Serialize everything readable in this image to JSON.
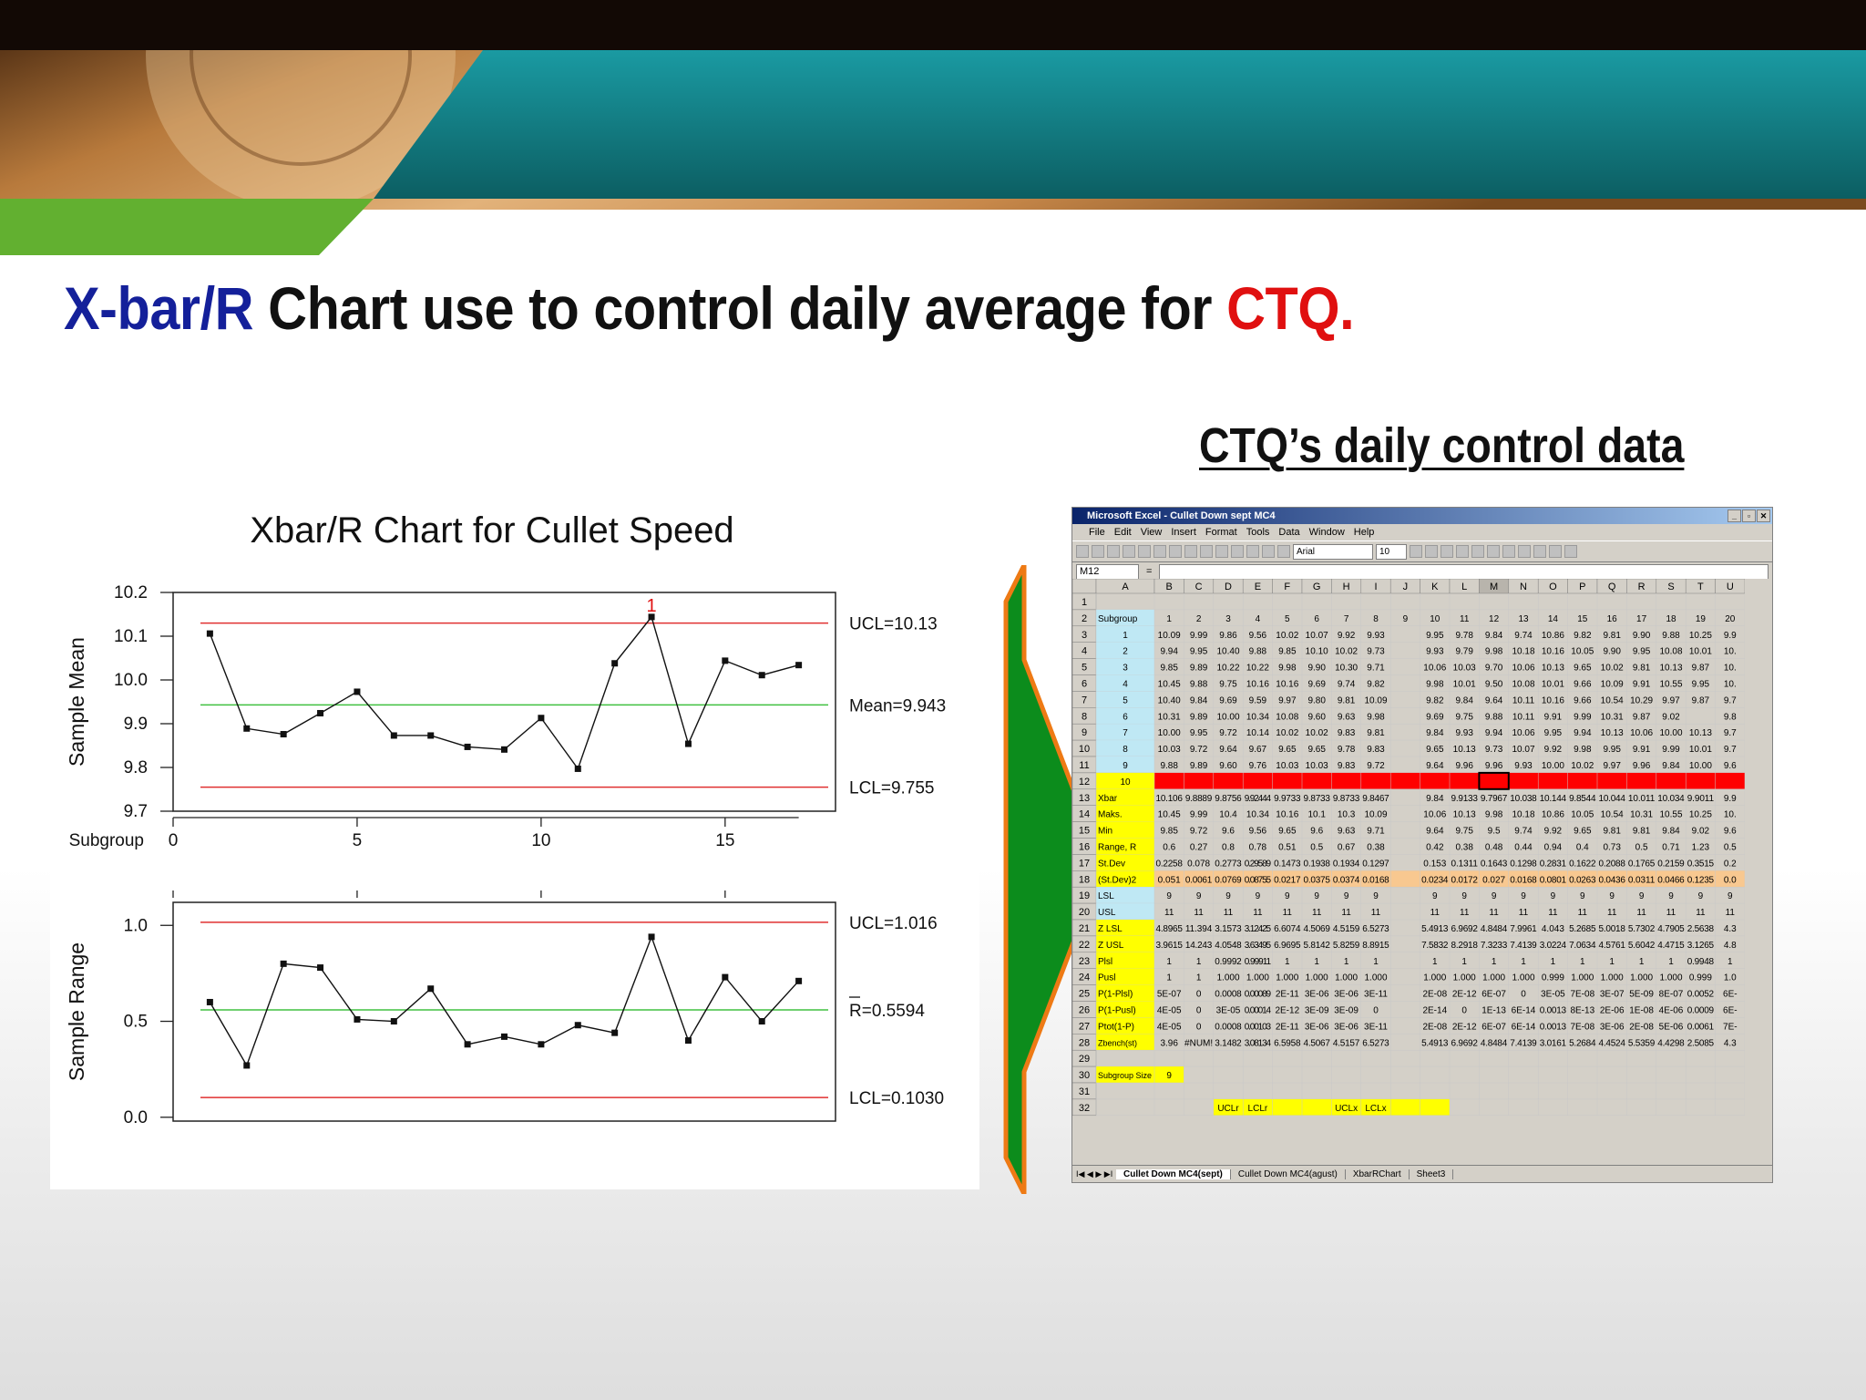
{
  "title": {
    "part1": "X-bar/R",
    "part2": " Chart use to control daily average for ",
    "part3": "CTQ."
  },
  "ctq_heading": "CTQ’s daily control data",
  "chart_data": [
    {
      "type": "line",
      "title": "Xbar/R Chart for Cullet Speed",
      "xlabel": "Subgroup",
      "ylabel": "Sample Mean",
      "x": [
        1,
        2,
        3,
        4,
        5,
        6,
        7,
        8,
        9,
        10,
        11,
        12,
        13,
        14,
        15,
        16,
        17
      ],
      "y": [
        10.106,
        9.889,
        9.876,
        9.924,
        9.973,
        9.873,
        9.873,
        9.847,
        9.841,
        9.913,
        9.797,
        10.038,
        10.144,
        9.854,
        10.044,
        10.011,
        10.034
      ],
      "xticks": [
        0,
        5,
        10,
        15
      ],
      "xlim": [
        0,
        18
      ],
      "yticks": [
        9.7,
        9.8,
        9.9,
        10.0,
        10.1,
        10.2
      ],
      "ytick_labels": [
        "9.7",
        "9.8",
        "9.9",
        "10.0",
        "10.1",
        "10.2"
      ],
      "ylim": [
        9.7,
        10.2
      ],
      "limits": [
        {
          "label": "UCL=10.13",
          "value": 10.13,
          "color": "#e03030"
        },
        {
          "label": "Mean=9.943",
          "value": 9.943,
          "color": "#40c040"
        },
        {
          "label": "LCL=9.755",
          "value": 9.755,
          "color": "#e03030"
        }
      ],
      "out_of_control": {
        "index": 12,
        "label": "1"
      }
    },
    {
      "type": "line",
      "ylabel": "Sample Range",
      "x": [
        1,
        2,
        3,
        4,
        5,
        6,
        7,
        8,
        9,
        10,
        11,
        12,
        13,
        14,
        15,
        16,
        17
      ],
      "y": [
        0.6,
        0.27,
        0.8,
        0.78,
        0.51,
        0.5,
        0.67,
        0.38,
        0.42,
        0.38,
        0.48,
        0.44,
        0.94,
        0.4,
        0.73,
        0.5,
        0.71
      ],
      "xlim": [
        0,
        18
      ],
      "yticks": [
        0.0,
        0.5,
        1.0
      ],
      "ytick_labels": [
        "0.0",
        "0.5",
        "1.0"
      ],
      "ylim": [
        -0.02,
        1.12
      ],
      "limits": [
        {
          "label": "UCL=1.016",
          "value": 1.016,
          "color": "#e03030"
        },
        {
          "label": "R=0.5594",
          "value": 0.5594,
          "color": "#40c040"
        },
        {
          "label": "LCL=0.1030",
          "value": 0.103,
          "color": "#e03030"
        }
      ]
    }
  ],
  "excel": {
    "title": "Microsoft Excel - Cullet Down sept MC4",
    "menu": [
      "File",
      "Edit",
      "View",
      "Insert",
      "Format",
      "Tools",
      "Data",
      "Window",
      "Help"
    ],
    "name_box": "M12",
    "formula_eq": "=",
    "font_name": "Arial",
    "font_size": "10",
    "columns": [
      "A",
      "B",
      "C",
      "D",
      "E",
      "F",
      "G",
      "H",
      "I",
      "J",
      "K",
      "L",
      "M",
      "N",
      "O",
      "P",
      "Q",
      "R",
      "S",
      "T",
      "U"
    ],
    "rows": [
      {
        "n": "1",
        "cells": []
      },
      {
        "n": "2",
        "cells": [
          "Subgroup",
          "1",
          "2",
          "3",
          "4",
          "5",
          "6",
          "7",
          "8",
          "9",
          "10",
          "11",
          "12",
          "13",
          "14",
          "15",
          "16",
          "17",
          "18",
          "19",
          "20"
        ]
      },
      {
        "n": "3",
        "cells": [
          "1",
          "10.09",
          "9.99",
          "9.86",
          "9.56",
          "10.02",
          "10.07",
          "9.92",
          "9.93",
          "",
          "9.95",
          "9.78",
          "9.84",
          "9.74",
          "10.86",
          "9.82",
          "9.81",
          "9.90",
          "9.88",
          "10.25",
          "9.9"
        ]
      },
      {
        "n": "4",
        "cells": [
          "2",
          "9.94",
          "9.95",
          "10.40",
          "9.88",
          "9.85",
          "10.10",
          "10.02",
          "9.73",
          "",
          "9.93",
          "9.79",
          "9.98",
          "10.18",
          "10.16",
          "10.05",
          "9.90",
          "9.95",
          "10.08",
          "10.01",
          "10."
        ]
      },
      {
        "n": "5",
        "cells": [
          "3",
          "9.85",
          "9.89",
          "10.22",
          "10.22",
          "9.98",
          "9.90",
          "10.30",
          "9.71",
          "",
          "10.06",
          "10.03",
          "9.70",
          "10.06",
          "10.13",
          "9.65",
          "10.02",
          "9.81",
          "10.13",
          "9.87",
          "10."
        ]
      },
      {
        "n": "6",
        "cells": [
          "4",
          "10.45",
          "9.88",
          "9.75",
          "10.16",
          "10.16",
          "9.69",
          "9.74",
          "9.82",
          "",
          "9.98",
          "10.01",
          "9.50",
          "10.08",
          "10.01",
          "9.66",
          "10.09",
          "9.91",
          "10.55",
          "9.95",
          "10."
        ]
      },
      {
        "n": "7",
        "cells": [
          "5",
          "10.40",
          "9.84",
          "9.69",
          "9.59",
          "9.97",
          "9.80",
          "9.81",
          "10.09",
          "",
          "9.82",
          "9.84",
          "9.64",
          "10.11",
          "10.16",
          "9.66",
          "10.54",
          "10.29",
          "9.97",
          "9.87",
          "9.7"
        ]
      },
      {
        "n": "8",
        "cells": [
          "6",
          "10.31",
          "9.89",
          "10.00",
          "10.34",
          "10.08",
          "9.60",
          "9.63",
          "9.98",
          "",
          "9.69",
          "9.75",
          "9.88",
          "10.11",
          "9.91",
          "9.99",
          "10.31",
          "9.87",
          "9.02",
          "",
          "9.8"
        ]
      },
      {
        "n": "9",
        "cells": [
          "7",
          "10.00",
          "9.95",
          "9.72",
          "10.14",
          "10.02",
          "10.02",
          "9.83",
          "9.81",
          "",
          "9.84",
          "9.93",
          "9.94",
          "10.06",
          "9.95",
          "9.94",
          "10.13",
          "10.06",
          "10.00",
          "10.13",
          "9.7"
        ]
      },
      {
        "n": "10",
        "cells": [
          "8",
          "10.03",
          "9.72",
          "9.64",
          "9.67",
          "9.65",
          "9.65",
          "9.78",
          "9.83",
          "",
          "9.65",
          "10.13",
          "9.73",
          "10.07",
          "9.92",
          "9.98",
          "9.95",
          "9.91",
          "9.99",
          "10.01",
          "9.7"
        ]
      },
      {
        "n": "11",
        "cells": [
          "9",
          "9.88",
          "9.89",
          "9.60",
          "9.76",
          "10.03",
          "10.03",
          "9.83",
          "9.72",
          "",
          "9.64",
          "9.96",
          "9.96",
          "9.93",
          "10.00",
          "10.02",
          "9.97",
          "9.96",
          "9.84",
          "10.00",
          "9.6"
        ]
      },
      {
        "n": "12",
        "cells": [
          "10"
        ]
      },
      {
        "n": "13",
        "cells": [
          "Xbar",
          "10.106",
          "9.8889",
          "9.8756",
          "9.92444",
          "9.9733",
          "9.8733",
          "9.8733",
          "9.8467",
          "",
          "9.84",
          "9.9133",
          "9.7967",
          "10.038",
          "10.144",
          "9.8544",
          "10.044",
          "10.011",
          "10.034",
          "9.9011",
          "9.9"
        ]
      },
      {
        "n": "14",
        "cells": [
          "Maks.",
          "10.45",
          "9.99",
          "10.4",
          "10.34",
          "10.16",
          "10.1",
          "10.3",
          "10.09",
          "",
          "10.06",
          "10.13",
          "9.98",
          "10.18",
          "10.86",
          "10.05",
          "10.54",
          "10.31",
          "10.55",
          "10.25",
          "10."
        ]
      },
      {
        "n": "15",
        "cells": [
          "Min",
          "9.85",
          "9.72",
          "9.6",
          "9.56",
          "9.65",
          "9.6",
          "9.63",
          "9.71",
          "",
          "9.64",
          "9.75",
          "9.5",
          "9.74",
          "9.92",
          "9.65",
          "9.81",
          "9.81",
          "9.84",
          "9.02",
          "9.6"
        ]
      },
      {
        "n": "16",
        "cells": [
          "Range, R",
          "0.6",
          "0.27",
          "0.8",
          "0.78",
          "0.51",
          "0.5",
          "0.67",
          "0.38",
          "",
          "0.42",
          "0.38",
          "0.48",
          "0.44",
          "0.94",
          "0.4",
          "0.73",
          "0.5",
          "0.71",
          "1.23",
          "0.5"
        ]
      },
      {
        "n": "17",
        "cells": [
          "St.Dev",
          "0.2258",
          "0.078",
          "0.2773",
          "0.29589",
          "0.1473",
          "0.1938",
          "0.1934",
          "0.1297",
          "",
          "0.153",
          "0.1311",
          "0.1643",
          "0.1298",
          "0.2831",
          "0.1622",
          "0.2088",
          "0.1765",
          "0.2159",
          "0.3515",
          "0.2"
        ]
      },
      {
        "n": "18",
        "cells": [
          "(St.Dev)2",
          "0.051",
          "0.0061",
          "0.0769",
          "0.08755",
          "0.0217",
          "0.0375",
          "0.0374",
          "0.0168",
          "",
          "0.0234",
          "0.0172",
          "0.027",
          "0.0168",
          "0.0801",
          "0.0263",
          "0.0436",
          "0.0311",
          "0.0466",
          "0.1235",
          "0.0"
        ]
      },
      {
        "n": "19",
        "cells": [
          "LSL",
          "9",
          "9",
          "9",
          "9",
          "9",
          "9",
          "9",
          "9",
          "",
          "9",
          "9",
          "9",
          "9",
          "9",
          "9",
          "9",
          "9",
          "9",
          "9",
          "9"
        ]
      },
      {
        "n": "20",
        "cells": [
          "USL",
          "11",
          "11",
          "11",
          "11",
          "11",
          "11",
          "11",
          "11",
          "",
          "11",
          "11",
          "11",
          "11",
          "11",
          "11",
          "11",
          "11",
          "11",
          "11",
          "11"
        ]
      },
      {
        "n": "21",
        "cells": [
          "Z LSL",
          "4.8965",
          "11.394",
          "3.1573",
          "3.12425",
          "6.6074",
          "4.5069",
          "4.5159",
          "6.5273",
          "",
          "5.4913",
          "6.9692",
          "4.8484",
          "7.9961",
          "4.043",
          "5.2685",
          "5.0018",
          "5.7302",
          "4.7905",
          "2.5638",
          "4.3"
        ]
      },
      {
        "n": "22",
        "cells": [
          "Z USL",
          "3.9615",
          "14.243",
          "4.0548",
          "3.63495",
          "6.9695",
          "5.8142",
          "5.8259",
          "8.8915",
          "",
          "7.5832",
          "8.2918",
          "7.3233",
          "7.4139",
          "3.0224",
          "7.0634",
          "4.5761",
          "5.6042",
          "4.4715",
          "3.1265",
          "4.8"
        ]
      },
      {
        "n": "23",
        "cells": [
          "Plsl",
          "1",
          "1",
          "0.9992",
          "0.99911",
          "1",
          "1",
          "1",
          "1",
          "",
          "1",
          "1",
          "1",
          "1",
          "1",
          "1",
          "1",
          "1",
          "1",
          "0.9948",
          "1"
        ]
      },
      {
        "n": "24",
        "cells": [
          "Pusl",
          "1",
          "1",
          "1.000",
          "1.000",
          "1.000",
          "1.000",
          "1.000",
          "1.000",
          "",
          "1.000",
          "1.000",
          "1.000",
          "1.000",
          "0.999",
          "1.000",
          "1.000",
          "1.000",
          "1.000",
          "0.999",
          "1.0"
        ]
      },
      {
        "n": "25",
        "cells": [
          "P(1-Plsl)",
          "5E-07",
          "0",
          "0.0008",
          "0.00089",
          "2E-11",
          "3E-06",
          "3E-06",
          "3E-11",
          "",
          "2E-08",
          "2E-12",
          "6E-07",
          "0",
          "3E-05",
          "7E-08",
          "3E-07",
          "5E-09",
          "8E-07",
          "0.0052",
          "6E-"
        ]
      },
      {
        "n": "26",
        "cells": [
          "P(1-Pusl)",
          "4E-05",
          "0",
          "3E-05",
          "0.00014",
          "2E-12",
          "3E-09",
          "3E-09",
          "0",
          "",
          "2E-14",
          "0",
          "1E-13",
          "6E-14",
          "0.0013",
          "8E-13",
          "2E-06",
          "1E-08",
          "4E-06",
          "0.0009",
          "6E-"
        ]
      },
      {
        "n": "27",
        "cells": [
          "Ptot(1-P)",
          "4E-05",
          "0",
          "0.0008",
          "0.00103",
          "2E-11",
          "3E-06",
          "3E-06",
          "3E-11",
          "",
          "2E-08",
          "2E-12",
          "6E-07",
          "6E-14",
          "0.0013",
          "7E-08",
          "3E-06",
          "2E-08",
          "5E-06",
          "0.0061",
          "7E-"
        ]
      },
      {
        "n": "28",
        "cells": [
          "Zbench(st)",
          "3.96",
          "#NUM!",
          "3.1482",
          "3.08134",
          "6.5958",
          "4.5067",
          "4.5157",
          "6.5273",
          "",
          "5.4913",
          "6.9692",
          "4.8484",
          "7.4139",
          "3.0161",
          "5.2684",
          "4.4524",
          "5.5359",
          "4.4298",
          "2.5085",
          "4.3"
        ]
      },
      {
        "n": "29",
        "cells": []
      },
      {
        "n": "30",
        "cells": [
          "Subgroup Size",
          "9"
        ]
      },
      {
        "n": "31",
        "cells": []
      },
      {
        "n": "32",
        "cells": [
          "",
          "",
          "",
          "UCLr",
          "LCLr",
          "",
          "",
          "UCLx",
          "LCLx"
        ]
      }
    ],
    "sheet_nav": "I◀ ◀ ▶ ▶I",
    "sheet_tabs": [
      "Cullet Down MC4(sept)",
      "Cullet Down MC4(agust)",
      "XbarRChart",
      "Sheet3"
    ]
  },
  "colors": {
    "title_blue": "#14209a",
    "title_red": "#e01010",
    "arrow_green": "#0c8c1c",
    "arrow_orange": "#ee7a14",
    "header_cyan": "#bfe8f4",
    "label_yellow": "#ffff00",
    "row_red": "#ff0000",
    "row_orange": "#f8c890"
  }
}
